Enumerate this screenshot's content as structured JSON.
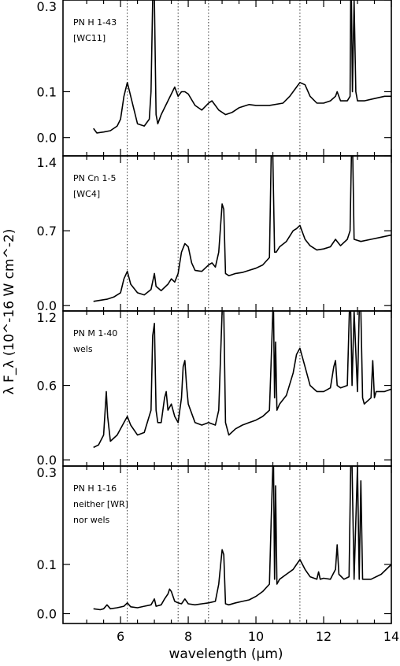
{
  "figure": {
    "xlabel": "wavelength (μm)",
    "ylabel": "λ F_λ (10^-16 W cm^-2)"
  },
  "chart_data": {
    "type": "line",
    "shared_x": {
      "xlim": [
        4.3,
        14
      ],
      "ticks": [
        6,
        8,
        10,
        12,
        14
      ],
      "tick_labels": [
        "6",
        "8",
        "10",
        "12",
        "14"
      ]
    },
    "reference_lines_x": [
      6.2,
      7.7,
      8.6,
      11.3
    ],
    "panels": [
      {
        "annotation": [
          "PN H 1-43",
          "[WC11]"
        ],
        "ylim": [
          -0.04,
          0.3
        ],
        "yticks": [
          0.0,
          0.1,
          0.3
        ],
        "ytick_labels": [
          "0.0",
          "0.1",
          "0.3"
        ],
        "series": [
          {
            "x": [
              5.2,
              5.3,
              5.5,
              5.7,
              5.9,
              6.0,
              6.1,
              6.2,
              6.3,
              6.5,
              6.7,
              6.85,
              6.9,
              6.95,
              7.0,
              7.05,
              7.1,
              7.2,
              7.4,
              7.5,
              7.6,
              7.7,
              7.8,
              7.9,
              8.0,
              8.2,
              8.4,
              8.6,
              8.7,
              8.9,
              9.1,
              9.3,
              9.5,
              9.8,
              10.0,
              10.4,
              10.8,
              11.0,
              11.2,
              11.3,
              11.45,
              11.6,
              11.8,
              12.0,
              12.2,
              12.35,
              12.4,
              12.5,
              12.7,
              12.78,
              12.8,
              12.82,
              12.85,
              12.9,
              12.95,
              13.0,
              13.2,
              13.5,
              13.8,
              14.0
            ],
            "y": [
              0.02,
              0.01,
              0.012,
              0.015,
              0.025,
              0.04,
              0.09,
              0.12,
              0.09,
              0.03,
              0.025,
              0.04,
              0.1,
              0.3,
              0.3,
              0.05,
              0.03,
              0.05,
              0.08,
              0.095,
              0.11,
              0.09,
              0.1,
              0.1,
              0.095,
              0.07,
              0.06,
              0.075,
              0.08,
              0.06,
              0.05,
              0.055,
              0.065,
              0.072,
              0.07,
              0.07,
              0.075,
              0.09,
              0.11,
              0.12,
              0.115,
              0.09,
              0.075,
              0.075,
              0.08,
              0.09,
              0.1,
              0.08,
              0.08,
              0.09,
              0.3,
              0.3,
              0.1,
              0.3,
              0.1,
              0.08,
              0.08,
              0.085,
              0.09,
              0.09
            ]
          }
        ]
      },
      {
        "annotation": [
          "PN Cn 1-5",
          "[WC4]"
        ],
        "ylim": [
          -0.05,
          1.4
        ],
        "yticks": [
          0.0,
          0.7,
          1.4
        ],
        "ytick_labels": [
          "0.0",
          "0.7",
          "1.4"
        ],
        "series": [
          {
            "x": [
              5.2,
              5.4,
              5.6,
              5.8,
              6.0,
              6.1,
              6.2,
              6.3,
              6.5,
              6.7,
              6.9,
              7.0,
              7.05,
              7.2,
              7.4,
              7.5,
              7.6,
              7.7,
              7.8,
              7.9,
              8.0,
              8.1,
              8.2,
              8.4,
              8.6,
              8.7,
              8.8,
              8.9,
              9.0,
              9.05,
              9.1,
              9.2,
              9.4,
              9.6,
              9.8,
              10.0,
              10.2,
              10.4,
              10.45,
              10.5,
              10.55,
              10.6,
              10.7,
              10.9,
              11.1,
              11.2,
              11.3,
              11.45,
              11.6,
              11.8,
              12.0,
              12.2,
              12.35,
              12.4,
              12.5,
              12.7,
              12.78,
              12.82,
              12.86,
              12.9,
              13.1,
              13.4,
              13.7,
              14.0
            ],
            "y": [
              0.04,
              0.05,
              0.06,
              0.08,
              0.12,
              0.25,
              0.32,
              0.2,
              0.12,
              0.1,
              0.15,
              0.3,
              0.18,
              0.14,
              0.2,
              0.25,
              0.22,
              0.3,
              0.5,
              0.58,
              0.55,
              0.4,
              0.33,
              0.32,
              0.38,
              0.4,
              0.36,
              0.5,
              0.95,
              0.9,
              0.3,
              0.28,
              0.3,
              0.31,
              0.33,
              0.35,
              0.38,
              0.45,
              1.4,
              1.4,
              0.5,
              0.5,
              0.55,
              0.6,
              0.7,
              0.72,
              0.75,
              0.62,
              0.56,
              0.52,
              0.53,
              0.55,
              0.62,
              0.6,
              0.56,
              0.62,
              0.7,
              1.4,
              1.4,
              0.62,
              0.6,
              0.62,
              0.64,
              0.66
            ]
          }
        ]
      },
      {
        "annotation": [
          "PN M 1-40",
          "wels"
        ],
        "ylim": [
          -0.05,
          1.2
        ],
        "yticks": [
          0.0,
          0.6,
          1.2
        ],
        "ytick_labels": [
          "0.0",
          "0.6",
          "1.2"
        ],
        "series": [
          {
            "x": [
              5.2,
              5.35,
              5.5,
              5.58,
              5.62,
              5.7,
              5.9,
              6.1,
              6.2,
              6.3,
              6.5,
              6.7,
              6.9,
              6.95,
              7.0,
              7.05,
              7.1,
              7.2,
              7.3,
              7.35,
              7.4,
              7.5,
              7.6,
              7.7,
              7.8,
              7.85,
              7.9,
              7.95,
              8.0,
              8.2,
              8.4,
              8.6,
              8.8,
              8.9,
              9.0,
              9.05,
              9.1,
              9.2,
              9.4,
              9.6,
              9.8,
              10.0,
              10.2,
              10.4,
              10.45,
              10.5,
              10.52,
              10.55,
              10.58,
              10.62,
              10.7,
              10.9,
              11.1,
              11.2,
              11.3,
              11.45,
              11.6,
              11.8,
              12.0,
              12.2,
              12.3,
              12.35,
              12.4,
              12.5,
              12.7,
              12.76,
              12.8,
              12.84,
              12.9,
              13.0,
              13.05,
              13.1,
              13.15,
              13.2,
              13.4,
              13.45,
              13.5,
              13.55,
              13.8,
              14.0
            ],
            "y": [
              0.1,
              0.12,
              0.2,
              0.55,
              0.35,
              0.15,
              0.2,
              0.3,
              0.35,
              0.28,
              0.2,
              0.22,
              0.4,
              1.0,
              1.1,
              0.4,
              0.3,
              0.3,
              0.5,
              0.55,
              0.4,
              0.45,
              0.35,
              0.3,
              0.5,
              0.75,
              0.8,
              0.6,
              0.45,
              0.3,
              0.28,
              0.3,
              0.28,
              0.4,
              1.2,
              1.2,
              0.3,
              0.2,
              0.25,
              0.28,
              0.3,
              0.32,
              0.35,
              0.4,
              0.8,
              1.2,
              1.2,
              0.5,
              0.95,
              0.4,
              0.45,
              0.52,
              0.7,
              0.85,
              0.9,
              0.75,
              0.6,
              0.55,
              0.55,
              0.58,
              0.75,
              0.8,
              0.6,
              0.58,
              0.6,
              1.2,
              1.2,
              0.6,
              1.2,
              0.55,
              1.2,
              1.2,
              0.5,
              0.45,
              0.5,
              0.8,
              0.5,
              0.55,
              0.55,
              0.57
            ]
          }
        ]
      },
      {
        "annotation": [
          "PN H 1-16",
          "neither [WR]",
          "nor wels"
        ],
        "ylim": [
          -0.02,
          0.3
        ],
        "yticks": [
          0.0,
          0.1,
          0.3
        ],
        "ytick_labels": [
          "0.0",
          "0.1",
          "0.3"
        ],
        "series": [
          {
            "x": [
              5.2,
              5.4,
              5.5,
              5.6,
              5.7,
              5.9,
              6.1,
              6.2,
              6.3,
              6.5,
              6.7,
              6.9,
              7.0,
              7.05,
              7.2,
              7.3,
              7.4,
              7.45,
              7.5,
              7.6,
              7.7,
              7.8,
              7.9,
              8.0,
              8.2,
              8.4,
              8.6,
              8.8,
              8.9,
              9.0,
              9.05,
              9.1,
              9.2,
              9.4,
              9.6,
              9.8,
              10.0,
              10.2,
              10.4,
              10.45,
              10.5,
              10.52,
              10.55,
              10.58,
              10.62,
              10.7,
              10.9,
              11.1,
              11.2,
              11.3,
              11.45,
              11.6,
              11.8,
              11.85,
              11.9,
              12.0,
              12.2,
              12.35,
              12.4,
              12.45,
              12.6,
              12.75,
              12.8,
              12.84,
              12.9,
              13.0,
              13.05,
              13.1,
              13.15,
              13.4,
              13.7,
              14.0
            ],
            "y": [
              0.01,
              0.008,
              0.01,
              0.018,
              0.01,
              0.012,
              0.015,
              0.022,
              0.014,
              0.012,
              0.015,
              0.018,
              0.03,
              0.015,
              0.018,
              0.03,
              0.04,
              0.05,
              0.045,
              0.025,
              0.022,
              0.02,
              0.03,
              0.02,
              0.018,
              0.02,
              0.022,
              0.025,
              0.06,
              0.13,
              0.12,
              0.02,
              0.018,
              0.022,
              0.025,
              0.028,
              0.035,
              0.045,
              0.06,
              0.19,
              0.3,
              0.3,
              0.07,
              0.26,
              0.06,
              0.07,
              0.08,
              0.09,
              0.1,
              0.11,
              0.09,
              0.075,
              0.07,
              0.085,
              0.07,
              0.072,
              0.07,
              0.09,
              0.14,
              0.08,
              0.07,
              0.075,
              0.3,
              0.3,
              0.07,
              0.3,
              0.07,
              0.27,
              0.07,
              0.07,
              0.08,
              0.1
            ]
          }
        ]
      }
    ]
  }
}
